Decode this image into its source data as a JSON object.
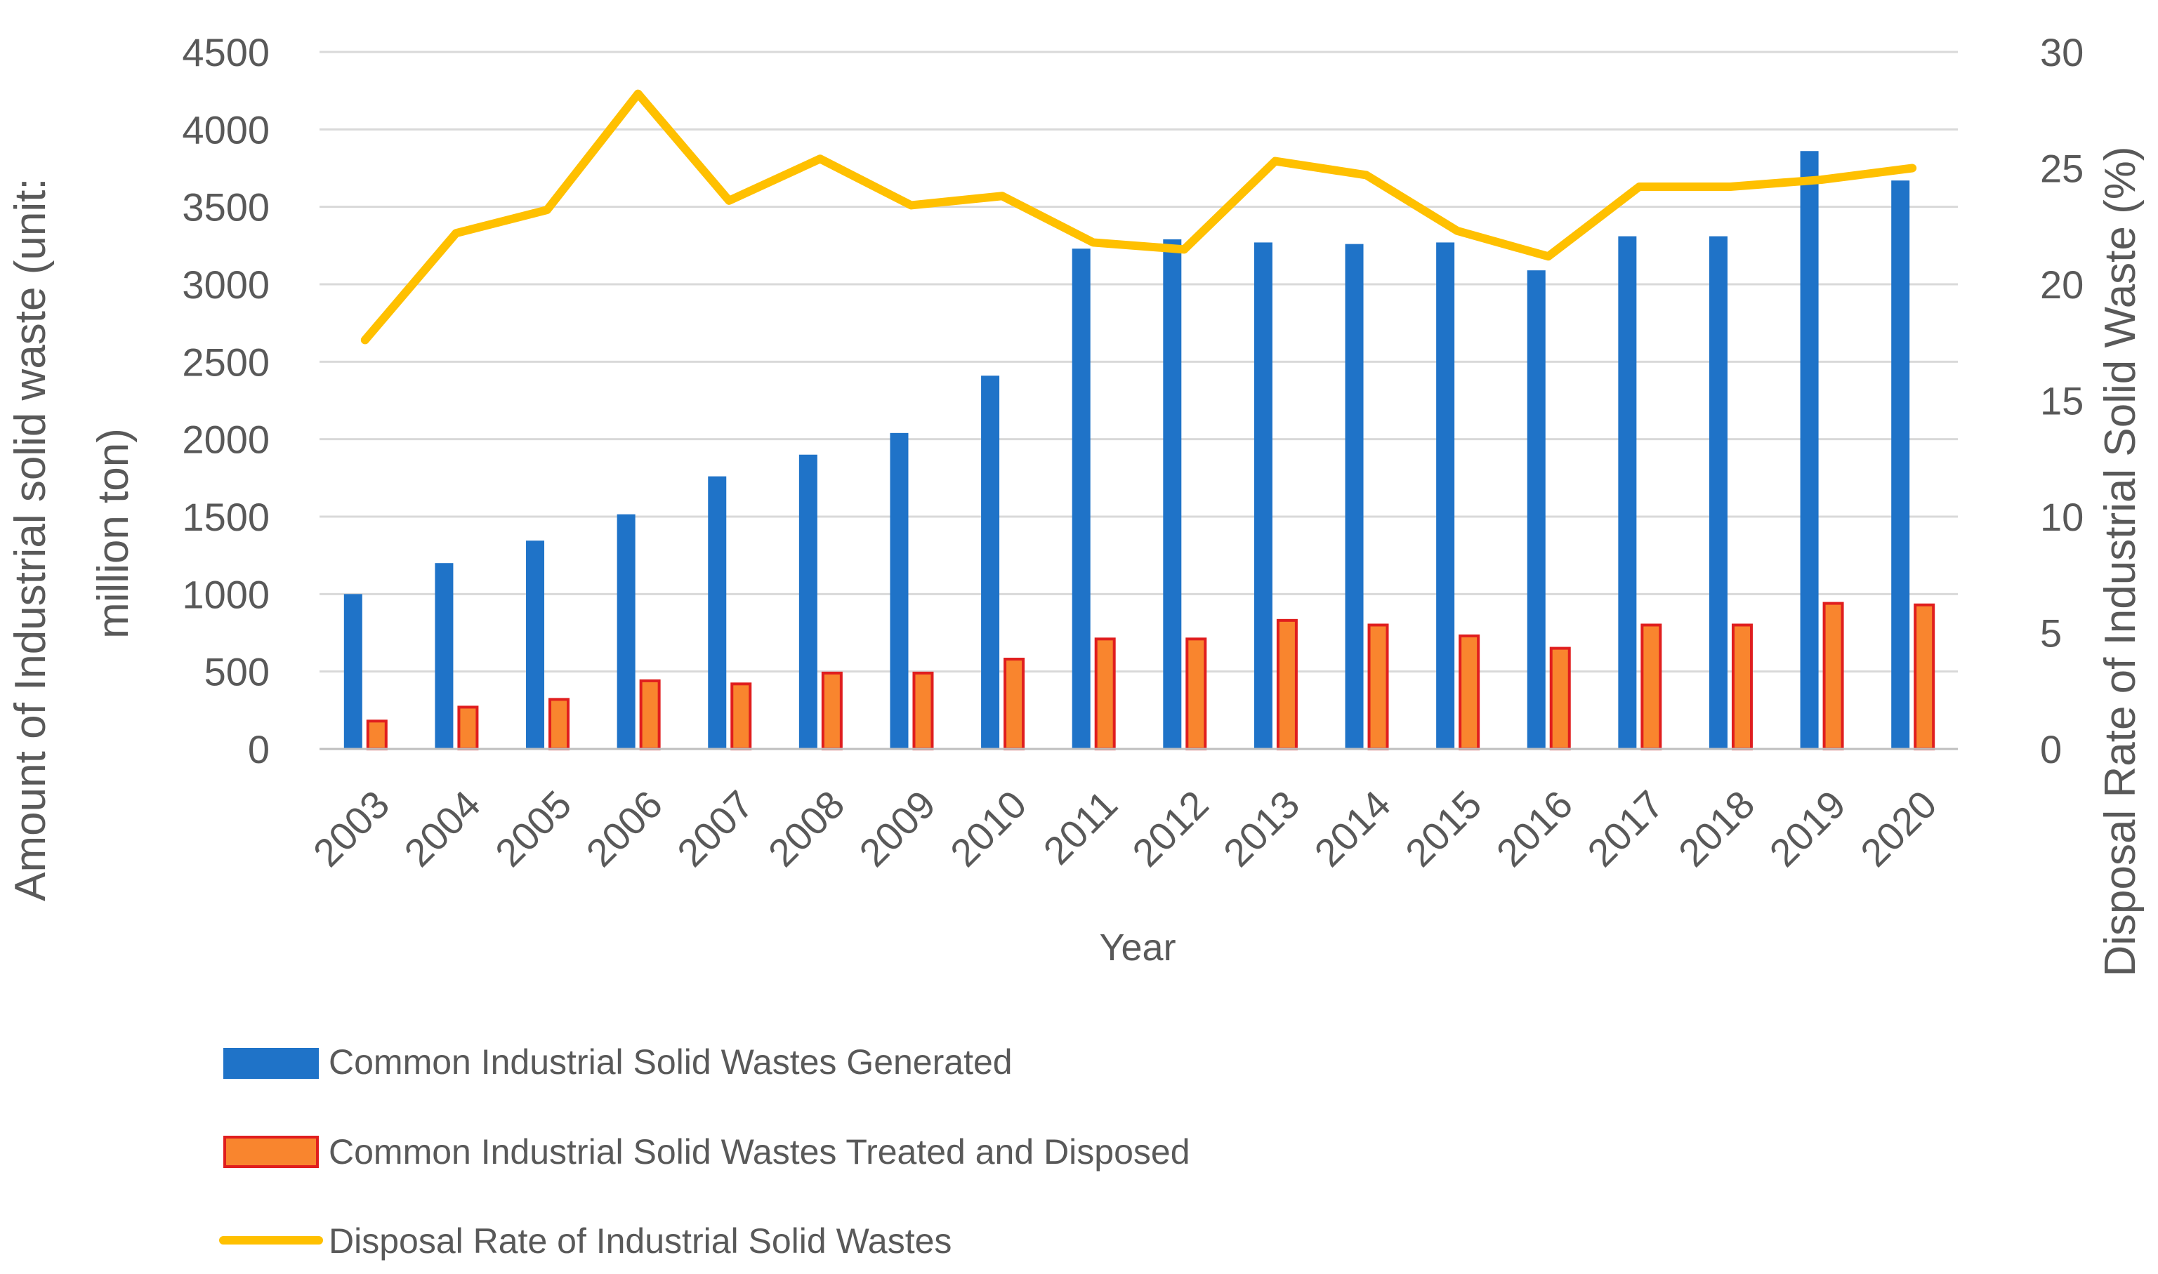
{
  "chart_data": {
    "type": "bar",
    "title": "",
    "xlabel": "Year",
    "ylabel": "Amount of Industrial solid waste (unit: million ton)",
    "ylabel_lines": [
      "Amount of Industrial solid waste (unit:",
      "million ton)"
    ],
    "y2label": "Disposal Rate of Industrial Solid Waste (%)",
    "ylim": [
      0,
      4500
    ],
    "y2lim": [
      0,
      30
    ],
    "yticks": [
      "0",
      "500",
      "1000",
      "1500",
      "2000",
      "2500",
      "3000",
      "3500",
      "4000",
      "4500"
    ],
    "y2ticks": [
      "0",
      "5",
      "10",
      "15",
      "20",
      "25",
      "30"
    ],
    "grid": true,
    "legend_position": "bottom-left",
    "categories": [
      "2003",
      "2004",
      "2005",
      "2006",
      "2007",
      "2008",
      "2009",
      "2010",
      "2011",
      "2012",
      "2013",
      "2014",
      "2015",
      "2016",
      "2017",
      "2018",
      "2019",
      "2020"
    ],
    "series": [
      {
        "name": "Common Industrial Solid Wastes Generated",
        "type": "bar",
        "axis": "left",
        "color": "#1f73c8",
        "values": [
          1000,
          1200,
          1345,
          1515,
          1760,
          1900,
          2040,
          2410,
          3230,
          3290,
          3270,
          3260,
          3270,
          3090,
          3310,
          3310,
          3860,
          3670
        ]
      },
      {
        "name": "Common Industrial Solid Wastes Treated and Disposed",
        "type": "bar",
        "axis": "left",
        "color": "#f9852e",
        "edge_color": "#e01e1e",
        "values": [
          180,
          270,
          320,
          440,
          420,
          490,
          490,
          580,
          710,
          710,
          830,
          800,
          730,
          650,
          800,
          800,
          940,
          930
        ]
      },
      {
        "name": "Disposal Rate of Industrial Solid Wastes",
        "type": "line",
        "axis": "right",
        "color": "#ffc000",
        "values": [
          17.6,
          22.2,
          23.2,
          28.2,
          23.6,
          25.4,
          23.4,
          23.8,
          21.8,
          21.5,
          25.3,
          24.7,
          22.3,
          21.2,
          24.2,
          24.2,
          24.5,
          25.0
        ]
      }
    ]
  }
}
